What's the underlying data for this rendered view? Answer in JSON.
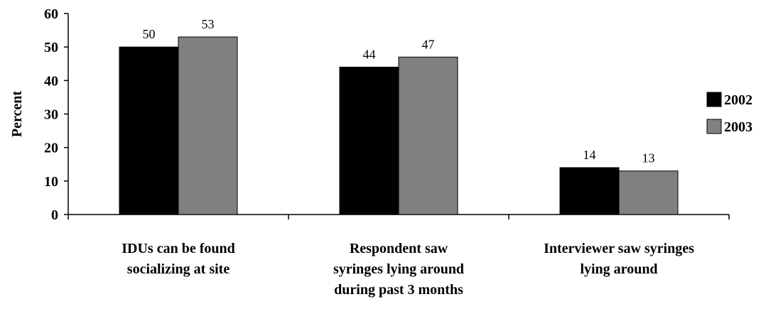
{
  "chart_data": {
    "type": "bar",
    "title": "",
    "xlabel": "",
    "ylabel": "Percent",
    "ylim": [
      0,
      60
    ],
    "yticks": [
      0,
      10,
      20,
      30,
      40,
      50,
      60
    ],
    "grid": false,
    "legend_position": "right",
    "categories": [
      [
        "IDUs can be found",
        "socializing at site"
      ],
      [
        "Respondent saw",
        "syringes lying around",
        "during past 3 months"
      ],
      [
        "Interviewer saw syringes",
        "lying around"
      ]
    ],
    "series": [
      {
        "name": "2002",
        "color": "#000000",
        "values": [
          50,
          44,
          14
        ]
      },
      {
        "name": "2003",
        "color": "#808080",
        "values": [
          53,
          47,
          13
        ]
      }
    ]
  }
}
